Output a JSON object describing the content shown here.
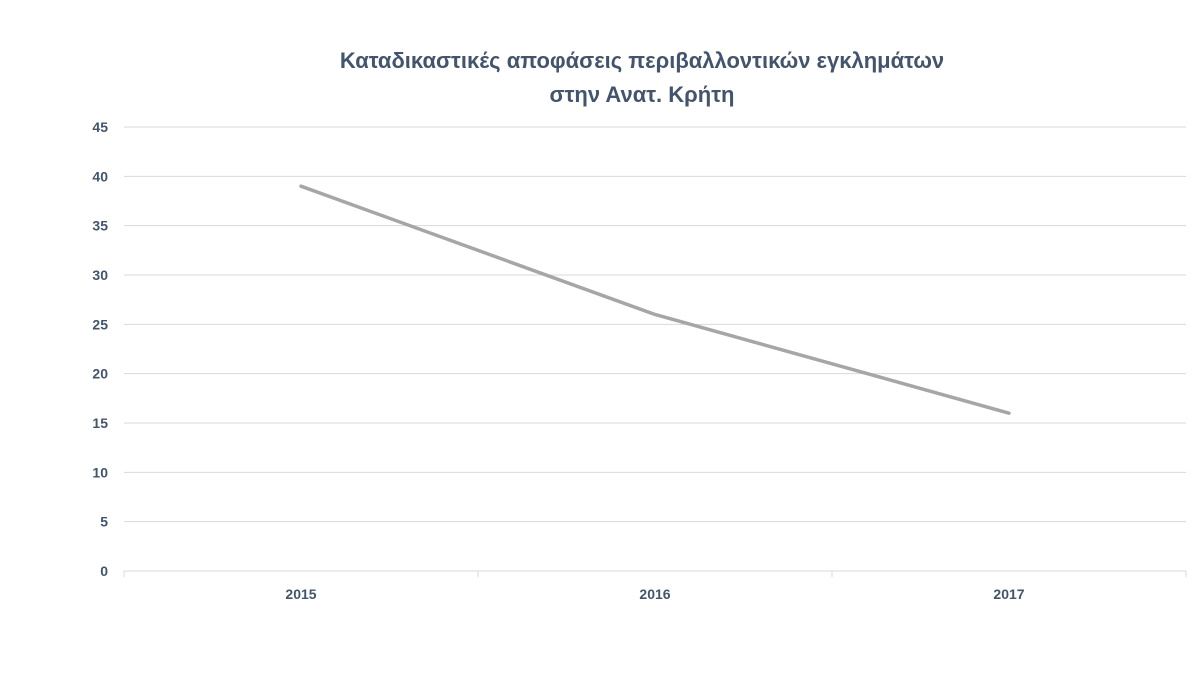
{
  "chart_data": {
    "type": "line",
    "title_lines": [
      "Καταδικαστικές αποφάσεις περιβαλλοντικών εγκλημάτων",
      "στην Ανατ. Κρήτη"
    ],
    "categories": [
      "2015",
      "2016",
      "2017"
    ],
    "series": [
      {
        "values": [
          39,
          26,
          16
        ],
        "color": "#a6a6a6"
      }
    ],
    "ylim": [
      0,
      45
    ],
    "yticks": [
      0,
      5,
      10,
      15,
      20,
      25,
      30,
      35,
      40,
      45
    ],
    "xlabel": "",
    "ylabel": "",
    "grid": true,
    "legend": "none",
    "colors": {
      "text": "#44546a",
      "grid": "#d9d9d9",
      "axis": "#d9d9d9"
    }
  }
}
